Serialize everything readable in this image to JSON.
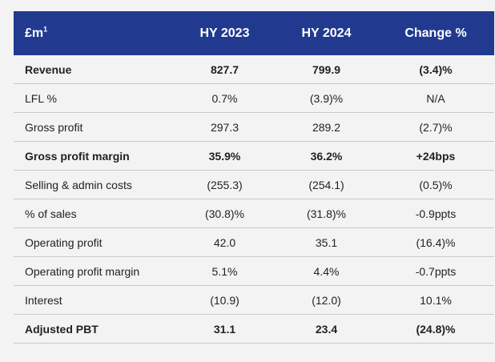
{
  "header": {
    "col0": "£m",
    "col0_sup": "1",
    "col1": "HY 2023",
    "col2": "HY 2024",
    "col3": "Change %"
  },
  "rows": [
    {
      "label": "Revenue",
      "hy2023": "827.7",
      "hy2024": "799.9",
      "change": "(3.4)%",
      "bold": true
    },
    {
      "label": "LFL %",
      "hy2023": "0.7%",
      "hy2024": "(3.9)%",
      "change": "N/A",
      "bold": false
    },
    {
      "label": "Gross profit",
      "hy2023": "297.3",
      "hy2024": "289.2",
      "change": "(2.7)%",
      "bold": false
    },
    {
      "label": "Gross profit margin",
      "hy2023": "35.9%",
      "hy2024": "36.2%",
      "change": "+24bps",
      "bold": true
    },
    {
      "label": "Selling & admin costs",
      "hy2023": "(255.3)",
      "hy2024": "(254.1)",
      "change": "(0.5)%",
      "bold": false
    },
    {
      "label": "% of sales",
      "hy2023": "(30.8)%",
      "hy2024": "(31.8)%",
      "change": "-0.9ppts",
      "bold": false
    },
    {
      "label": "Operating profit",
      "hy2023": "42.0",
      "hy2024": "35.1",
      "change": "(16.4)%",
      "bold": false
    },
    {
      "label": "Operating profit margin",
      "hy2023": "5.1%",
      "hy2024": "4.4%",
      "change": "-0.7ppts",
      "bold": false
    },
    {
      "label": "Interest",
      "hy2023": "(10.9)",
      "hy2024": "(12.0)",
      "change": "10.1%",
      "bold": false
    },
    {
      "label": "Adjusted PBT",
      "hy2023": "31.1",
      "hy2024": "23.4",
      "change": "(24.8)%",
      "bold": true
    }
  ]
}
